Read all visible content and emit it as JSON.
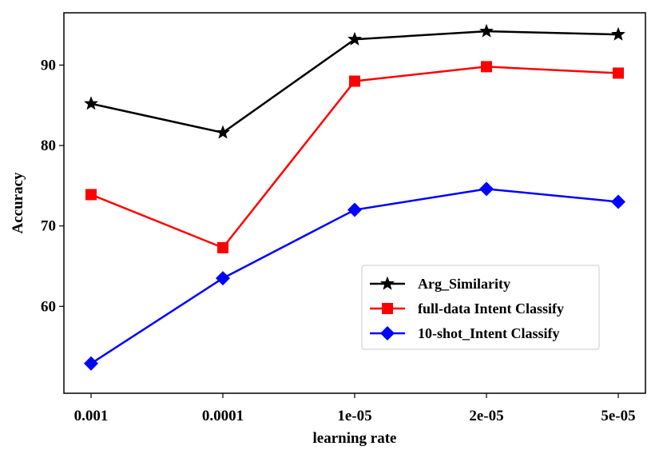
{
  "chart_data": {
    "type": "line",
    "title": "",
    "xlabel": "learning rate",
    "ylabel": "Accuracy",
    "categories": [
      "0.001",
      "0.0001",
      "1e-05",
      "2e-05",
      "5e-05"
    ],
    "yticks": [
      60,
      70,
      80,
      90
    ],
    "ylim": [
      49.2,
      96.5
    ],
    "grid": false,
    "legend_position": "lower-right",
    "series": [
      {
        "name": "Arg_Similarity",
        "color": "#000000",
        "marker": "star",
        "values": [
          85.2,
          81.6,
          93.2,
          94.2,
          93.8
        ]
      },
      {
        "name": "full-data Intent Classify",
        "color": "#ff0000",
        "marker": "square",
        "values": [
          73.9,
          67.3,
          88.0,
          89.8,
          89.0
        ]
      },
      {
        "name": "10-shot_Intent Classify",
        "color": "#0000ff",
        "marker": "diamond",
        "values": [
          52.9,
          63.5,
          72.0,
          74.6,
          73.0
        ]
      }
    ]
  }
}
